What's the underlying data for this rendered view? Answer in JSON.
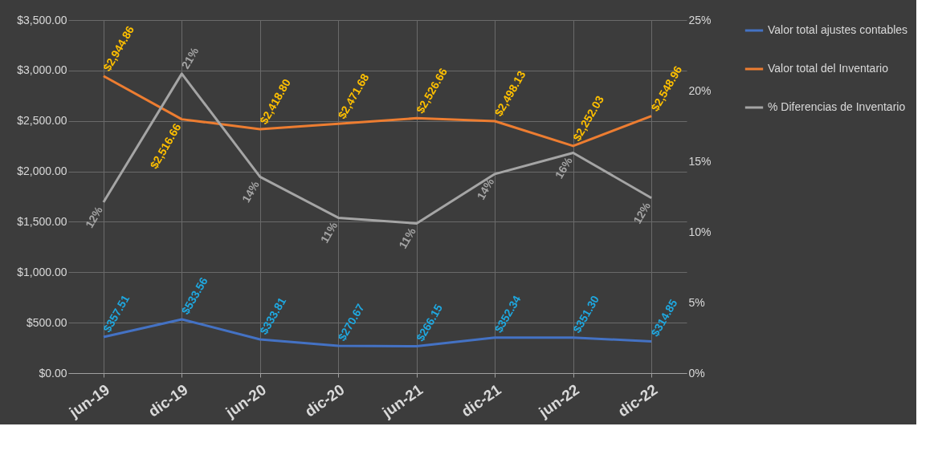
{
  "chart_data": {
    "type": "line",
    "categories": [
      "jun-19",
      "dic-19",
      "jun-20",
      "dic-20",
      "jun-21",
      "dic-21",
      "jun-22",
      "dic-22"
    ],
    "series": [
      {
        "name": "Valor total ajustes contables",
        "color": "#4472c4",
        "values": [
          357.51,
          533.56,
          333.81,
          270.67,
          266.15,
          352.34,
          351.3,
          314.85
        ],
        "value_labels": [
          "$357.51",
          "$533.56",
          "$333.81",
          "$270.67",
          "$266.15",
          "$352.34",
          "$351.30",
          "$314.85"
        ]
      },
      {
        "name": "Valor total del Inventario",
        "color": "#ed7d31",
        "values": [
          2944.86,
          2516.66,
          2418.8,
          2471.68,
          2526.66,
          2498.13,
          2252.03,
          2548.96
        ],
        "value_labels": [
          "$2,944.86",
          "$2,516.66",
          "$2,418.80",
          "$2,471.68",
          "$2,526.66",
          "$2,498.13",
          "$2,252.03",
          "$2,548.96"
        ]
      },
      {
        "name": "% Diferencias de Inventario",
        "color": "#a5a5a5",
        "axis": "y2",
        "values": [
          12.1,
          21.2,
          13.9,
          11.0,
          10.6,
          14.1,
          15.6,
          12.4
        ],
        "value_labels": [
          "12%",
          "21%",
          "14%",
          "11%",
          "11%",
          "14%",
          "16%",
          "12%"
        ]
      }
    ],
    "ylim": [
      0,
      3500
    ],
    "yticks": [
      {
        "value": 0,
        "label": "$0.00"
      },
      {
        "value": 500,
        "label": "$500.00"
      },
      {
        "value": 1000,
        "label": "$1,000.00"
      },
      {
        "value": 1500,
        "label": "$1,500.00"
      },
      {
        "value": 2000,
        "label": "$2,000.00"
      },
      {
        "value": 2500,
        "label": "$2,500.00"
      },
      {
        "value": 3000,
        "label": "$3,000.00"
      },
      {
        "value": 3500,
        "label": "$3,500.00"
      }
    ],
    "y2lim": [
      0,
      25
    ],
    "y2ticks": [
      {
        "value": 0,
        "label": "0%"
      },
      {
        "value": 5,
        "label": "5%"
      },
      {
        "value": 10,
        "label": "10%"
      },
      {
        "value": 15,
        "label": "15%"
      },
      {
        "value": 20,
        "label": "20%"
      },
      {
        "value": 25,
        "label": "25%"
      }
    ],
    "grid": true,
    "legend": "right",
    "marker": "none",
    "line_style": "solid"
  }
}
